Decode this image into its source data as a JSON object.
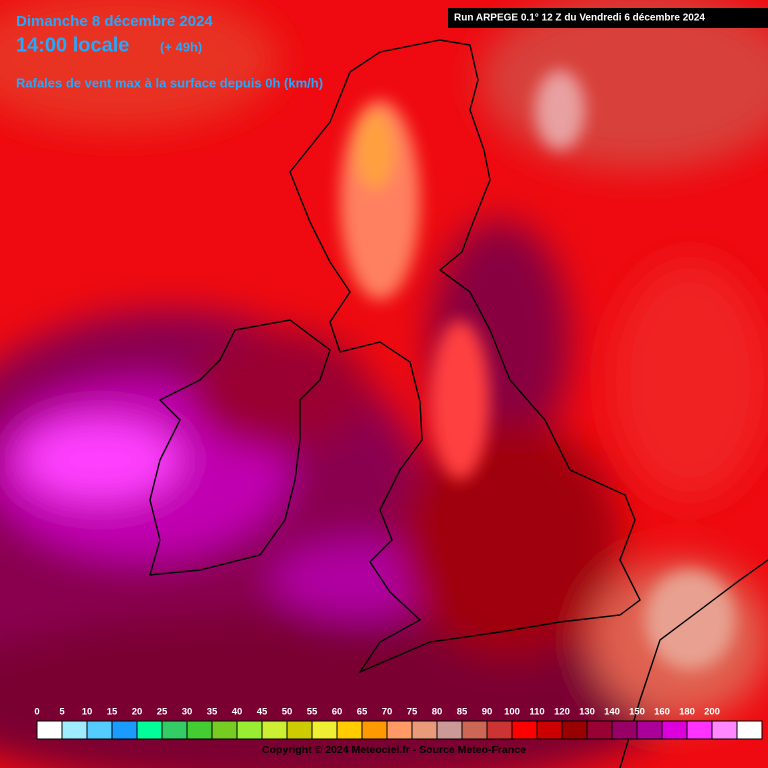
{
  "header": {
    "date": "Dimanche 8 décembre 2024",
    "time": "14:00 locale",
    "lead": "(+ 49h)",
    "subtitle": "Rafales de vent max à la surface depuis 0h (km/h)",
    "run": "Run ARPEGE 0.1° 12 Z du Vendredi 6 décembre 2024"
  },
  "legend": {
    "labels": [
      0,
      5,
      10,
      15,
      20,
      25,
      30,
      35,
      40,
      45,
      50,
      55,
      60,
      65,
      70,
      75,
      80,
      85,
      90,
      100,
      110,
      120,
      130,
      140,
      150,
      160,
      180,
      200
    ],
    "colors": [
      "#ffffff",
      "#a0ecff",
      "#55ccff",
      "#1a9cff",
      "#00ff99",
      "#33cc66",
      "#44cc33",
      "#77cc22",
      "#99ee33",
      "#ccee33",
      "#cccc00",
      "#eeee33",
      "#ffcc00",
      "#ff9900",
      "#ff9966",
      "#e89a7a",
      "#cc9999",
      "#cc6655",
      "#cc3333",
      "#ff0000",
      "#cc0000",
      "#990000",
      "#990033",
      "#990066",
      "#aa0099",
      "#dd00dd",
      "#ff33ff",
      "#ff88ff",
      "#ffffff"
    ]
  },
  "footer": {
    "copyright": "Copyright © 2024 Meteociel.fr - Source Meteo-France"
  }
}
